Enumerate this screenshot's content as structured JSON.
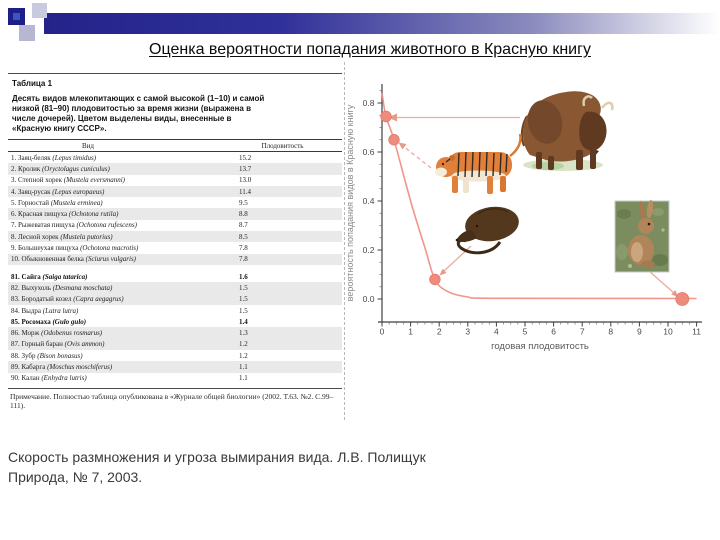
{
  "slide": {
    "title": "Оценка вероятности попадания животного в Красную книгу",
    "caption_line1": "Скорость размножения и угроза вымирания вида. Л.В. Полищук",
    "caption_line2": "Природа, № 7, 2003."
  },
  "table": {
    "label": "Таблица 1",
    "description": "Десять видов млекопитающих с самой высокой (1–10) и самой низкой (81–90) плодовитостью за время жизни (выражена в числе дочерей). Цветом выделены виды, внесенные в «Красную книгу СССР».",
    "col_species": "Вид",
    "col_fecundity": "Плодовитость",
    "rows_top": [
      {
        "num": "1",
        "name": "Заяц-беляк",
        "latin": "Lepus timidus",
        "value": "15.2",
        "shaded": false
      },
      {
        "num": "2",
        "name": "Кролик",
        "latin": "Oryctolagus cuniculus",
        "value": "13.7",
        "shaded": true
      },
      {
        "num": "3",
        "name": "Степной хорек",
        "latin": "Mustela eversmanni",
        "value": "13.0",
        "shaded": false
      },
      {
        "num": "4",
        "name": "Заяц-русак",
        "latin": "Lepus europaeus",
        "value": "11.4",
        "shaded": true
      },
      {
        "num": "5",
        "name": "Горностай",
        "latin": "Mustela erminea",
        "value": "9.5",
        "shaded": false
      },
      {
        "num": "6",
        "name": "Красная пищуха",
        "latin": "Ochotona rutila",
        "value": "8.8",
        "shaded": true
      },
      {
        "num": "7",
        "name": "Рыжеватая пищуха",
        "latin": "Ochotona rufescens",
        "value": "8.7",
        "shaded": false
      },
      {
        "num": "8",
        "name": "Лесной хорек",
        "latin": "Mustela putorius",
        "value": "8.5",
        "shaded": true
      },
      {
        "num": "9",
        "name": "Большеухая пищуха",
        "latin": "Ochotona macrotis",
        "value": "7.8",
        "shaded": false
      },
      {
        "num": "10",
        "name": "Обыкновенная белка",
        "latin": "Sciurus vulgaris",
        "value": "7.8",
        "shaded": true
      }
    ],
    "rows_bottom": [
      {
        "num": "81",
        "name": "Сайга",
        "latin": "Saiga tatarica",
        "value": "1.6",
        "shaded": false,
        "bold": true
      },
      {
        "num": "82",
        "name": "Выхухоль",
        "latin": "Desmana moschata",
        "value": "1.5",
        "shaded": true
      },
      {
        "num": "83",
        "name": "Бородатый козел",
        "latin": "Capra aegagrus",
        "value": "1.5",
        "shaded": true
      },
      {
        "num": "84",
        "name": "Выдра",
        "latin": "Lutra lutra",
        "value": "1.5",
        "shaded": false
      },
      {
        "num": "85",
        "name": "Росомаха",
        "latin": "Gulo gulo",
        "value": "1.4",
        "shaded": false,
        "bold": true
      },
      {
        "num": "86",
        "name": "Морж",
        "latin": "Odobenus rosmarus",
        "value": "1.3",
        "shaded": true
      },
      {
        "num": "87",
        "name": "Горный баран",
        "latin": "Ovis ammon",
        "value": "1.2",
        "shaded": true
      },
      {
        "num": "88",
        "name": "Зубр",
        "latin": "Bison bonasus",
        "value": "1.2",
        "shaded": false
      },
      {
        "num": "89",
        "name": "Кабарга",
        "latin": "Moschus moschiferus",
        "value": "1.1",
        "shaded": true
      },
      {
        "num": "90",
        "name": "Калан",
        "latin": "Enhydra lutris",
        "value": "1.1",
        "shaded": false
      }
    ],
    "note": "Примечание. Полностью таблица опубликована в «Журнале общей биологии» (2002. Т.63. №2. С.99–111)."
  },
  "chart_data": {
    "type": "line",
    "title": "",
    "xlabel": "годовая плодовитость",
    "ylabel": "вероятность попадания видов в Красную книгу",
    "xlim": [
      0,
      11.2
    ],
    "ylim": [
      -0.09,
      0.9
    ],
    "x_ticks": [
      0,
      1,
      2,
      3,
      4,
      5,
      6,
      7,
      8,
      9,
      10,
      11
    ],
    "y_ticks": [
      0.0,
      0.2,
      0.4,
      0.6,
      0.8
    ],
    "grid": false,
    "curve": [
      [
        0,
        0.84
      ],
      [
        0.14,
        0.745
      ],
      [
        0.42,
        0.65
      ],
      [
        1.0,
        0.4
      ],
      [
        1.5,
        0.21
      ],
      [
        1.85,
        0.08
      ],
      [
        2.3,
        0.03
      ],
      [
        3.0,
        0.008
      ],
      [
        4.0,
        0.003
      ],
      [
        11.0,
        0.002
      ]
    ],
    "points": [
      {
        "x": 0.14,
        "y": 0.745,
        "animal": "зубр"
      },
      {
        "x": 0.42,
        "y": 0.65,
        "animal": "тигр"
      },
      {
        "x": 1.85,
        "y": 0.08,
        "animal": "выхухоль"
      },
      {
        "x": 10.5,
        "y": 0.0,
        "animal": "кролик"
      }
    ],
    "accent_color": "#ee8b7c",
    "arrow_color": "#ecab9d"
  }
}
